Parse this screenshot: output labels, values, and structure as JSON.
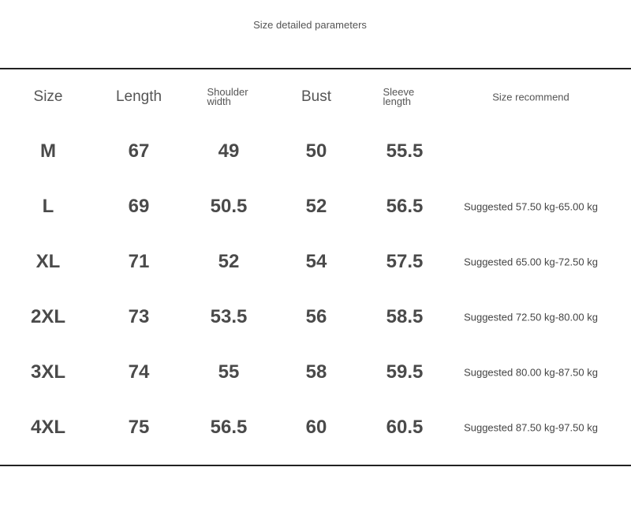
{
  "title": "Size detailed parameters",
  "headers": [
    "Size",
    "Length",
    "Shoulder width",
    "Bust",
    "Sleeve length",
    "Size recommend"
  ],
  "rows": [
    {
      "size": "M",
      "length": "67",
      "shoulder": "49",
      "bust": "50",
      "sleeve": "55.5",
      "recommend": ""
    },
    {
      "size": "L",
      "length": "69",
      "shoulder": "50.5",
      "bust": "52",
      "sleeve": "56.5",
      "recommend": "Suggested 57.50 kg-65.00 kg"
    },
    {
      "size": "XL",
      "length": "71",
      "shoulder": "52",
      "bust": "54",
      "sleeve": "57.5",
      "recommend": "Suggested 65.00 kg-72.50 kg"
    },
    {
      "size": "2XL",
      "length": "73",
      "shoulder": "53.5",
      "bust": "56",
      "sleeve": "58.5",
      "recommend": "Suggested 72.50 kg-80.00 kg"
    },
    {
      "size": "3XL",
      "length": "74",
      "shoulder": "55",
      "bust": "58",
      "sleeve": "59.5",
      "recommend": "Suggested 80.00 kg-87.50 kg"
    },
    {
      "size": "4XL",
      "length": "75",
      "shoulder": "56.5",
      "bust": "60",
      "sleeve": "60.5",
      "recommend": "Suggested 87.50 kg-97.50 kg"
    }
  ]
}
